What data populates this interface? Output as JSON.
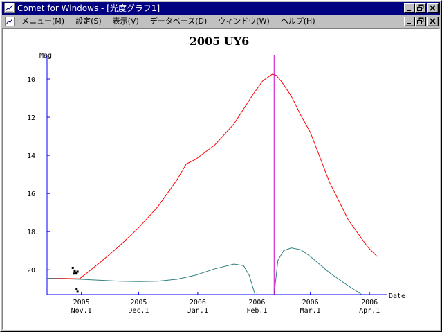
{
  "window": {
    "title": "Comet for Windows - [光度グラフ1]"
  },
  "menu": {
    "items": [
      "メニュー(M)",
      "設定(S)",
      "表示(V)",
      "データベース(D)",
      "ウィンドウ(W)",
      "ヘルプ(H)"
    ]
  },
  "chart_data": {
    "type": "line",
    "title": "2005 UY6",
    "ylabel": "Mag",
    "xlabel": "Date",
    "y_axis_inverted": true,
    "ylim": [
      21.3,
      9.2
    ],
    "y_ticks": [
      10,
      12,
      14,
      16,
      18,
      20
    ],
    "x_ticks": [
      {
        "year": "2005",
        "month": "Nov.1",
        "day": 0
      },
      {
        "year": "2005",
        "month": "Dec.1",
        "day": 30
      },
      {
        "year": "2006",
        "month": "Jan.1",
        "day": 61
      },
      {
        "year": "2006",
        "month": "Feb.1",
        "day": 92
      },
      {
        "year": "2006",
        "month": "Mar.1",
        "day": 120
      },
      {
        "year": "2006",
        "month": "Apr.1",
        "day": 151
      }
    ],
    "xlim": [
      -18,
      160
    ],
    "current_date_day": 101,
    "colors": {
      "total_magnitude": "#ff0000",
      "nuclear_magnitude": "#2f7f7f",
      "current_date_line": "#cc00cc",
      "observations": "#000000",
      "axes": "#0000ff"
    },
    "series": [
      {
        "key": "total_magnitude",
        "x": [
          -18,
          -10,
          -1,
          0,
          10,
          20,
          30,
          40,
          50,
          55,
          60,
          70,
          80,
          90,
          95,
          100,
          102,
          105,
          110,
          115,
          120,
          130,
          140,
          150,
          155
        ],
        "y": [
          20.45,
          20.45,
          20.47,
          20.4,
          19.6,
          18.75,
          17.8,
          16.7,
          15.3,
          14.45,
          14.2,
          13.45,
          12.35,
          10.8,
          10.1,
          9.75,
          9.8,
          10.15,
          10.9,
          11.9,
          12.8,
          15.4,
          17.4,
          18.8,
          19.3
        ]
      },
      {
        "key": "nuclear_magnitude",
        "segments": [
          {
            "x": [
              -18,
              0,
              10,
              20,
              30,
              40,
              50,
              60,
              70,
              80,
              85,
              88,
              91
            ],
            "y": [
              20.45,
              20.5,
              20.55,
              20.6,
              20.62,
              20.6,
              20.5,
              20.28,
              19.95,
              19.7,
              19.78,
              20.3,
              21.3
            ]
          },
          {
            "x": [
              101,
              103,
              106,
              110,
              115,
              120,
              130,
              140,
              147
            ],
            "y": [
              21.3,
              19.5,
              19.0,
              18.85,
              18.95,
              19.3,
              20.15,
              20.85,
              21.3
            ]
          }
        ]
      }
    ],
    "observations": {
      "x": [
        -4.5,
        -3.5,
        -4,
        -3,
        -2.5,
        -2,
        -2.5,
        -2
      ],
      "y": [
        19.9,
        20.05,
        20.2,
        20.15,
        20.2,
        20.1,
        21.0,
        21.15
      ]
    }
  }
}
